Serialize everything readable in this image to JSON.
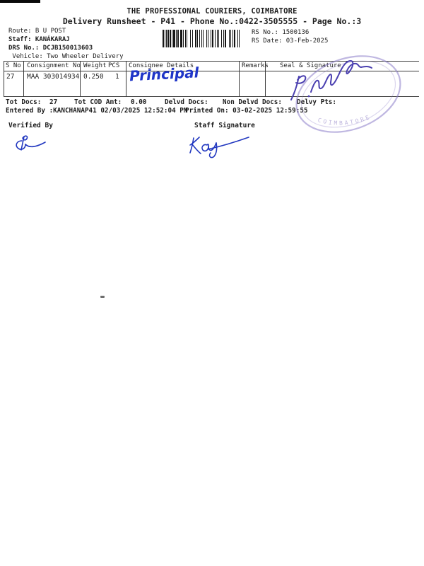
{
  "header": {
    "title": "THE PROFESSIONAL COURIERS, COIMBATORE",
    "subtitle": "Delivery Runsheet - P41 - Phone No.:0422-3505555 - Page No.:3",
    "route": "Route: B U POST",
    "staff": "Staff: KANÁKARAJ",
    "drs_no": "DRS No.: DCJB150013603",
    "vehicle": " Vehicle: Two Wheeler Delivery",
    "rs_no": "RS No.: 1500136",
    "rs_date": "RS Date: 03-Feb-2025"
  },
  "barcode": {
    "pattern": "211111212111311122311211141213211212111411131122121113121124111211231112"
  },
  "table": {
    "headers": {
      "s_no": "S No",
      "consignment_no": "Consignment No",
      "weight": "Weight",
      "pcs": "PCS",
      "consignee": "Consignee Details",
      "remarks": "Remarks",
      "seal": "Seal & Signature"
    },
    "row": {
      "s_no": "27",
      "consignment_no": "MAA 303014934",
      "weight": "0.250",
      "pcs": "1",
      "consignee_handwriting": "Principal"
    }
  },
  "totals": {
    "tot_docs_label": "Tot Docs:",
    "tot_docs_value": "27",
    "tot_cod_label": "Tot COD Amt:",
    "tot_cod_value": "0.00",
    "delvd_docs_label": "Delvd Docs:",
    "non_delvd_docs_label": "Non Delvd Docs:",
    "delvy_pts_label": "Delvy Pts:",
    "entered_by": "Entered By :KANCHANAP41 02/03/2025 12:52:04 PM",
    "printed_on": "Printed On: 03-02-2025 12:59:55"
  },
  "signature_section": {
    "verified_by_label": "Verified By",
    "staff_signature_label": "Staff Signature"
  },
  "stamp": {
    "arc_text": "COIMBATORE"
  },
  "colors": {
    "ink_blue": "#1f35c8",
    "sig_violet": "#4a3fb0",
    "stamp_purple": "#8a7cc8",
    "print_black": "#1d1d1d"
  }
}
